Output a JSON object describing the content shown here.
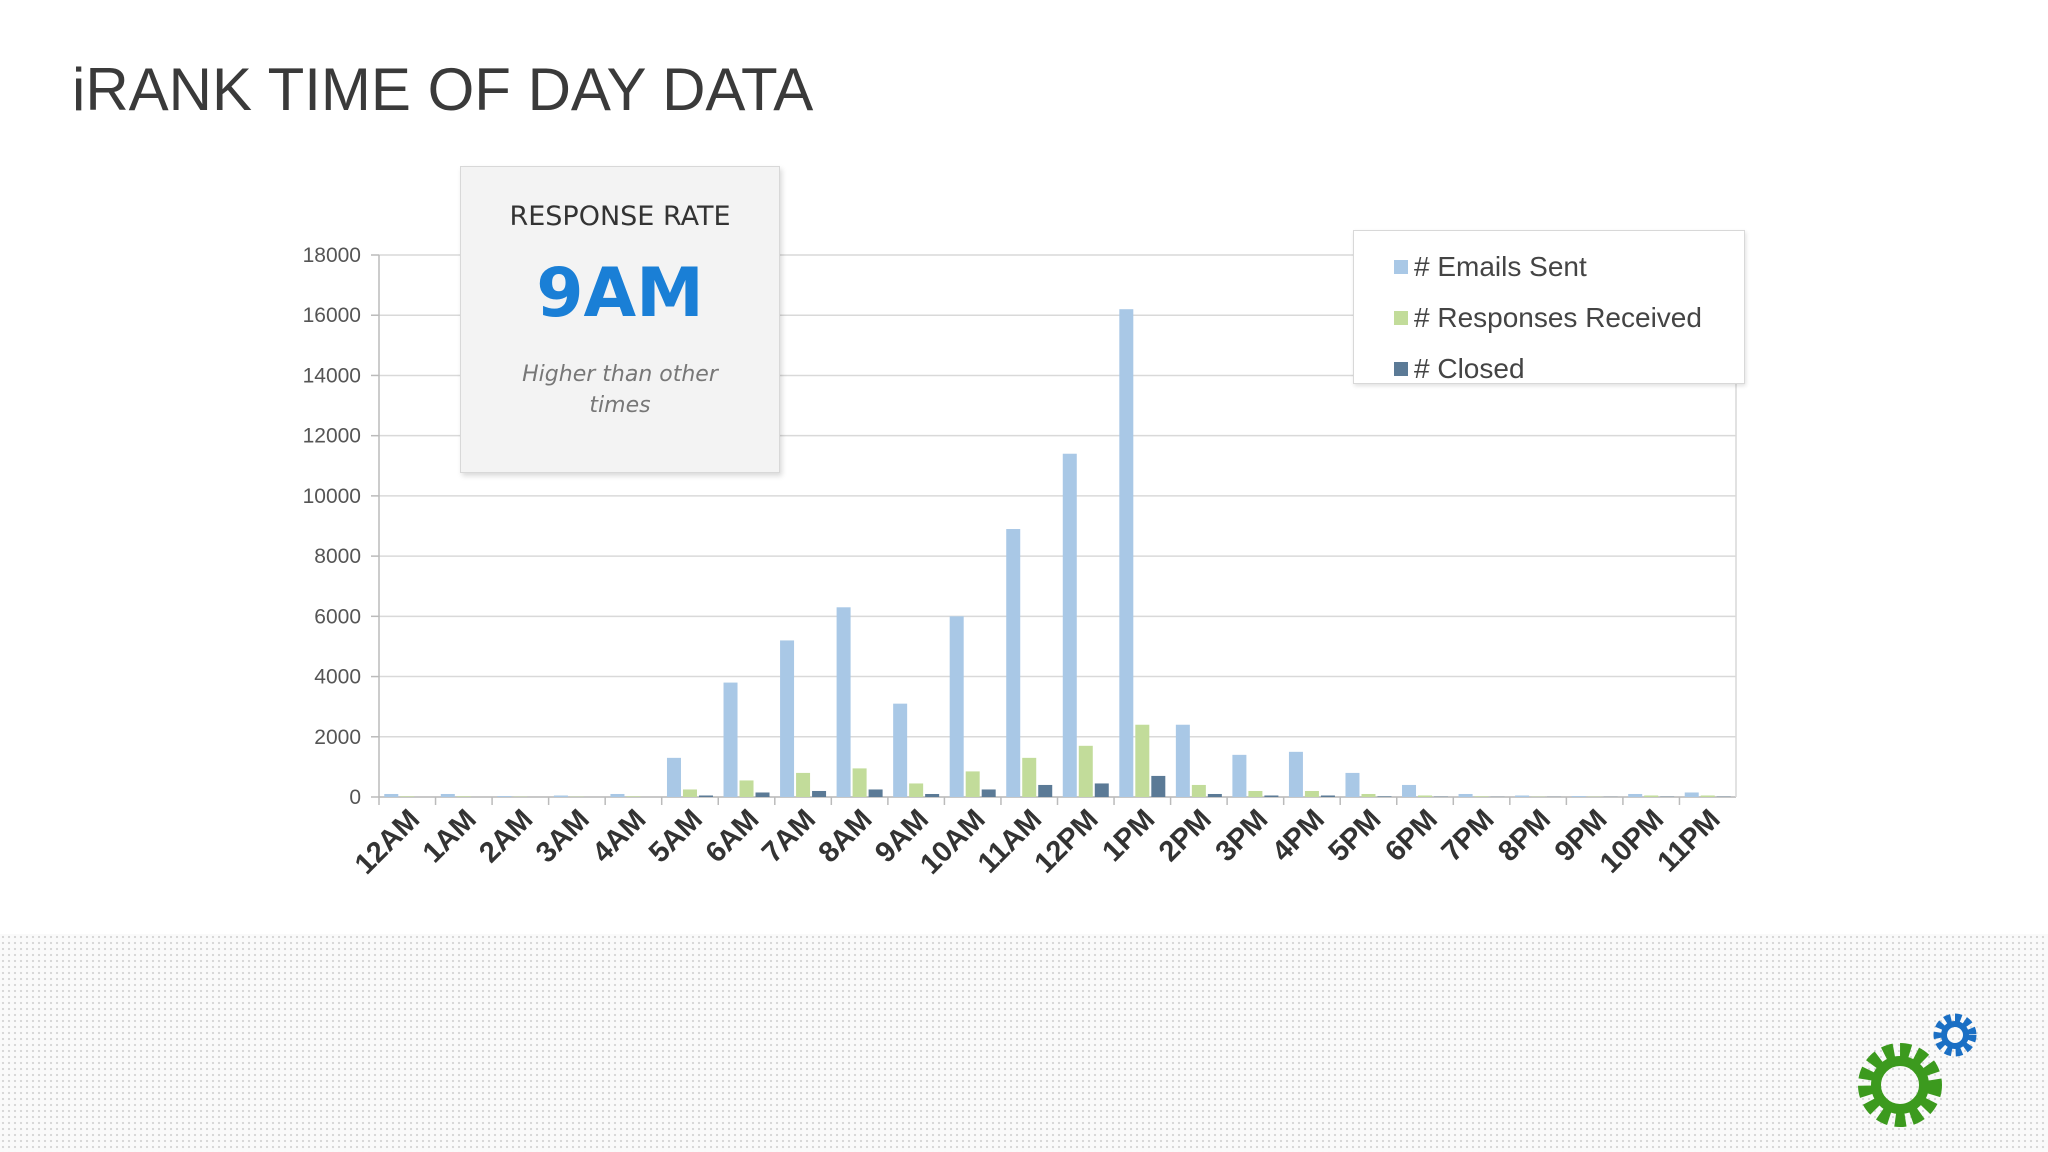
{
  "chart_data": {
    "type": "bar",
    "title": "iRANK TIME OF DAY DATA",
    "categories": [
      "12AM",
      "1AM",
      "2AM",
      "3AM",
      "4AM",
      "5AM",
      "6AM",
      "7AM",
      "8AM",
      "9AM",
      "10AM",
      "11AM",
      "12PM",
      "1PM",
      "2PM",
      "3PM",
      "4PM",
      "5PM",
      "6PM",
      "7PM",
      "8PM",
      "9PM",
      "10PM",
      "11PM"
    ],
    "series": [
      {
        "name": "# Emails Sent",
        "color": "#a9c8e6",
        "values": [
          100,
          100,
          30,
          50,
          100,
          1300,
          3800,
          5200,
          6300,
          3100,
          6000,
          8900,
          11400,
          16200,
          2400,
          1400,
          1500,
          800,
          400,
          100,
          50,
          30,
          100,
          150
        ]
      },
      {
        "name": "# Responses Received",
        "color": "#c2dc9a",
        "values": [
          20,
          20,
          10,
          10,
          20,
          250,
          550,
          800,
          950,
          450,
          850,
          1300,
          1700,
          2400,
          400,
          200,
          200,
          100,
          50,
          20,
          10,
          10,
          50,
          50
        ]
      },
      {
        "name": "# Closed",
        "color": "#5b7a96",
        "values": [
          0,
          0,
          0,
          0,
          0,
          50,
          150,
          200,
          250,
          100,
          250,
          400,
          450,
          700,
          100,
          50,
          50,
          20,
          10,
          5,
          5,
          5,
          10,
          10
        ]
      }
    ],
    "ylim": [
      0,
      18000
    ],
    "yticks": [
      0,
      2000,
      4000,
      6000,
      8000,
      10000,
      12000,
      14000,
      16000,
      18000
    ],
    "grid": true,
    "legend": "upper right"
  },
  "callout": {
    "heading": "RESPONSE RATE",
    "value": "9AM",
    "note": "Higher than other times"
  }
}
